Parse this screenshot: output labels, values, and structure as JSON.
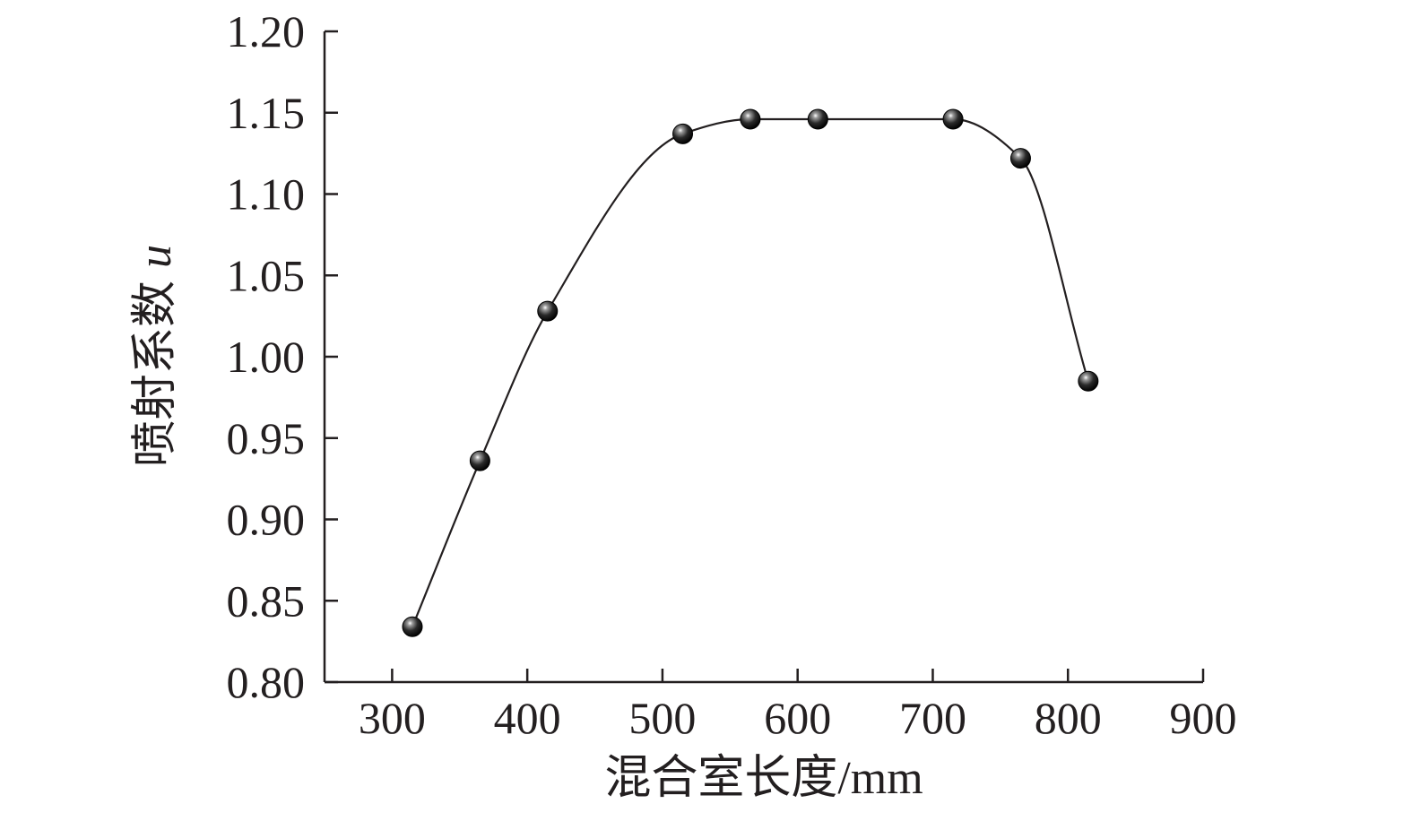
{
  "chart_data": {
    "type": "scatter",
    "title": "",
    "xlabel": "混合室长度/mm",
    "ylabel": "喷射系数",
    "ylabel_symbol": "u",
    "xlim": [
      250,
      900
    ],
    "ylim": [
      0.8,
      1.2
    ],
    "xticks": [
      300,
      400,
      500,
      600,
      700,
      800,
      900
    ],
    "xtick_labels": [
      "300",
      "400",
      "500",
      "600",
      "700",
      "800",
      "900"
    ],
    "yticks": [
      0.8,
      0.85,
      0.9,
      0.95,
      1.0,
      1.05,
      1.1,
      1.15,
      1.2
    ],
    "ytick_labels": [
      "0.80",
      "0.85",
      "0.90",
      "0.95",
      "1.00",
      "1.05",
      "1.10",
      "1.15",
      "1.20"
    ],
    "grid": false,
    "legend": false,
    "series": [
      {
        "x": [
          315,
          365,
          415,
          515,
          565,
          615,
          715,
          765,
          815
        ],
        "y": [
          0.834,
          0.936,
          1.028,
          1.137,
          1.146,
          1.146,
          1.146,
          1.122,
          0.985
        ],
        "marker": "sphere",
        "line": "smooth"
      }
    ],
    "colors": {
      "axis": "#231f20",
      "line": "#231f20",
      "marker": "#1a1a1a"
    }
  }
}
